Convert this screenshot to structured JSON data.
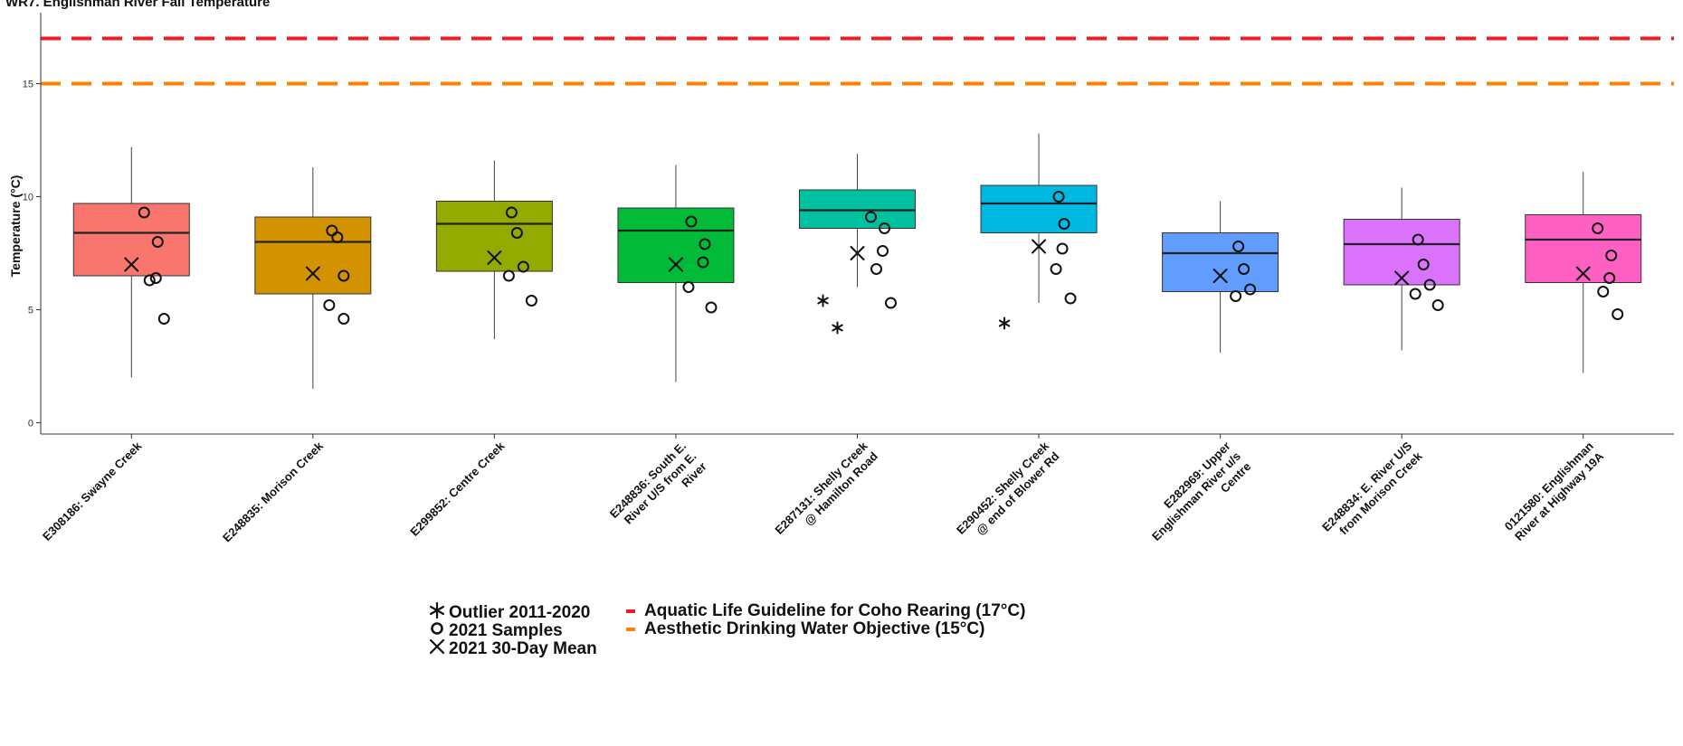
{
  "chart_data": {
    "type": "box",
    "title": "WR7. Englishman River Fall Temperature",
    "xlabel": "",
    "ylabel": "Temperature (°C)",
    "ylim": [
      -0.5,
      18.5
    ],
    "y_ticks": [
      0,
      5,
      10,
      15
    ],
    "grid": false,
    "legend_position": "bottom",
    "categories": [
      "E308186: Swayne Creek",
      "E248835: Morison Creek",
      "E299852: Centre Creek",
      "E248836: South E. River U/S from E. River",
      "E287131: Shelly Creek @ Hamilton Road",
      "E290452: Shelly Creek @ end of Blower Rd",
      "E282969: Upper Englishman River u/s Centre",
      "E248834: E. River U/S from Morison Creek",
      "0121580: Englishman River at Highway 19A"
    ],
    "category_lines": [
      [
        "E308186: Swayne Creek"
      ],
      [
        "E248835: Morison Creek"
      ],
      [
        "E299852: Centre Creek"
      ],
      [
        "E248836: South E.",
        "River U/S from E.",
        "River"
      ],
      [
        "E287131: Shelly Creek",
        "@ Hamilton Road"
      ],
      [
        "E290452: Shelly Creek",
        "@ end of Blower Rd"
      ],
      [
        "E282969: Upper",
        "Englishman River u/s",
        "Centre"
      ],
      [
        "E248834: E. River U/S",
        "from Morison Creek"
      ],
      [
        "0121580: Englishman",
        "River at Highway 19A"
      ]
    ],
    "box_colors": [
      "#f8766d",
      "#d39200",
      "#93aa00",
      "#00ba38",
      "#00c19f",
      "#00b9e3",
      "#619cff",
      "#db72fb",
      "#ff61c3"
    ],
    "boxes": [
      {
        "min": 2.0,
        "q1": 6.5,
        "median": 8.4,
        "q3": 9.7,
        "max": 12.2
      },
      {
        "min": 1.5,
        "q1": 5.7,
        "median": 8.0,
        "q3": 9.1,
        "max": 11.3
      },
      {
        "min": 3.7,
        "q1": 6.7,
        "median": 8.8,
        "q3": 9.8,
        "max": 11.6
      },
      {
        "min": 1.8,
        "q1": 6.2,
        "median": 8.5,
        "q3": 9.5,
        "max": 11.4
      },
      {
        "min": 6.0,
        "q1": 8.6,
        "median": 9.4,
        "q3": 10.3,
        "max": 11.9
      },
      {
        "min": 5.3,
        "q1": 8.4,
        "median": 9.7,
        "q3": 10.5,
        "max": 12.8
      },
      {
        "min": 3.1,
        "q1": 5.8,
        "median": 7.5,
        "q3": 8.4,
        "max": 9.8
      },
      {
        "min": 3.2,
        "q1": 6.1,
        "median": 7.9,
        "q3": 9.0,
        "max": 10.4
      },
      {
        "min": 2.2,
        "q1": 6.2,
        "median": 8.1,
        "q3": 9.2,
        "max": 11.1
      }
    ],
    "outliers_2011_2020": [
      [],
      [],
      [],
      [],
      [
        5.4,
        4.2
      ],
      [
        4.4
      ],
      [],
      [],
      []
    ],
    "samples_2021": [
      [
        9.3,
        8.0,
        6.4,
        6.3,
        4.6
      ],
      [
        8.5,
        8.2,
        6.5,
        5.2,
        4.6
      ],
      [
        9.3,
        8.4,
        6.9,
        6.5,
        5.4
      ],
      [
        8.9,
        7.9,
        7.1,
        6.0,
        5.1
      ],
      [
        9.1,
        8.6,
        7.6,
        6.8,
        5.3
      ],
      [
        10.0,
        8.8,
        7.7,
        6.8,
        5.5
      ],
      [
        7.8,
        6.8,
        5.9,
        5.6
      ],
      [
        8.1,
        7.0,
        6.1,
        5.7,
        5.2
      ],
      [
        8.6,
        7.4,
        6.4,
        5.8,
        4.8
      ]
    ],
    "mean_30day_2021": [
      7.0,
      6.6,
      7.3,
      7.0,
      7.5,
      7.8,
      6.5,
      6.4,
      6.6
    ],
    "reference_lines": [
      {
        "label": "Aquatic Life Guideline for Coho Rearing (17°C)",
        "value": 17,
        "color": "#ee1c25",
        "style": "dashed"
      },
      {
        "label": "Aesthetic Drinking Water Objective (15°C)",
        "value": 15,
        "color": "#ff7f00",
        "style": "dashed"
      }
    ],
    "legend": {
      "outlier": "Outlier 2011-2020",
      "samples": "2021 Samples",
      "mean": "2021 30-Day Mean",
      "guideline": "Aquatic Life Guideline for Coho Rearing (17°C)",
      "objective": "Aesthetic Drinking Water Objective (15°C)"
    }
  }
}
